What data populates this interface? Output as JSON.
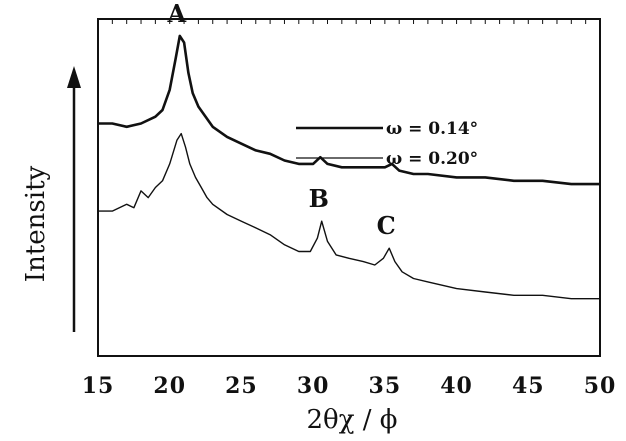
{
  "chart_data": {
    "type": "line",
    "title": "",
    "xlabel": "2θχ / ϕ",
    "ylabel": "Intensity",
    "xlim": [
      15,
      50
    ],
    "ylim": [
      0,
      1
    ],
    "x_ticks": [
      "15",
      "20",
      "25",
      "30",
      "35",
      "40",
      "45",
      "50"
    ],
    "grid": false,
    "legend": {
      "placement": "upper-right",
      "entries": [
        "ω = 0.14°",
        "ω = 0.20°"
      ]
    },
    "series": [
      {
        "name": "ω = 0.14°",
        "x": [
          15,
          16,
          17,
          18,
          19,
          19.5,
          20,
          20.4,
          20.7,
          21,
          21.3,
          21.6,
          22,
          22.5,
          23,
          24,
          25,
          26,
          27,
          28,
          29,
          30,
          30.5,
          31,
          32,
          33,
          34,
          35,
          35.5,
          36,
          37,
          38,
          40,
          42,
          44,
          46,
          48,
          50
        ],
        "y": [
          0.69,
          0.69,
          0.68,
          0.69,
          0.71,
          0.73,
          0.79,
          0.88,
          0.95,
          0.93,
          0.84,
          0.78,
          0.74,
          0.71,
          0.68,
          0.65,
          0.63,
          0.61,
          0.6,
          0.58,
          0.57,
          0.57,
          0.59,
          0.57,
          0.56,
          0.56,
          0.56,
          0.56,
          0.57,
          0.55,
          0.54,
          0.54,
          0.53,
          0.53,
          0.52,
          0.52,
          0.51,
          0.51
        ]
      },
      {
        "name": "ω = 0.20°",
        "x": [
          15,
          16,
          17,
          17.5,
          18,
          18.5,
          19,
          19.5,
          20,
          20.5,
          20.8,
          21.1,
          21.4,
          21.8,
          22.2,
          22.6,
          23,
          24,
          25,
          26,
          27,
          28,
          29,
          29.8,
          30.3,
          30.6,
          31,
          31.6,
          32.5,
          33.5,
          34.3,
          34.9,
          35.3,
          35.7,
          36.2,
          37,
          38,
          40,
          42,
          44,
          46,
          48,
          50
        ],
        "y": [
          0.43,
          0.43,
          0.45,
          0.44,
          0.49,
          0.47,
          0.5,
          0.52,
          0.57,
          0.64,
          0.66,
          0.62,
          0.57,
          0.53,
          0.5,
          0.47,
          0.45,
          0.42,
          0.4,
          0.38,
          0.36,
          0.33,
          0.31,
          0.31,
          0.35,
          0.4,
          0.34,
          0.3,
          0.29,
          0.28,
          0.27,
          0.29,
          0.32,
          0.28,
          0.25,
          0.23,
          0.22,
          0.2,
          0.19,
          0.18,
          0.18,
          0.17,
          0.17
        ]
      }
    ],
    "annotations": [
      {
        "text": "A",
        "x": 20.7,
        "series": 0
      },
      {
        "text": "B",
        "x": 30.6,
        "series": 1
      },
      {
        "text": "C",
        "x": 35.3,
        "series": 1
      }
    ]
  }
}
